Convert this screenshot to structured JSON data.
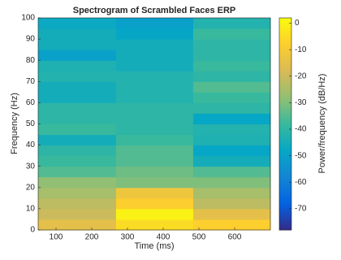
{
  "chart_data": {
    "type": "heatmap",
    "title": "Spectrogram of Scrambled Faces ERP",
    "x_label": "Time (ms)",
    "y_label": "Frequency (Hz)",
    "colorbar_label": "Power/frequency (dB/Hz)",
    "x_bins": [
      50,
      268,
      484,
      700
    ],
    "y_bins": [
      0,
      5,
      10,
      15,
      20,
      25,
      30,
      35,
      40,
      45,
      50,
      55,
      60,
      65,
      70,
      75,
      80,
      85,
      90,
      95,
      100
    ],
    "values": [
      [
        -15,
        -5,
        -8
      ],
      [
        -20,
        0,
        -15
      ],
      [
        -22,
        -8,
        -22
      ],
      [
        -25,
        -12,
        -25
      ],
      [
        -28,
        -30,
        -30
      ],
      [
        -35,
        -32,
        -35
      ],
      [
        -38,
        -35,
        -45
      ],
      [
        -40,
        -35,
        -48
      ],
      [
        -45,
        -38,
        -43
      ],
      [
        -38,
        -40,
        -42
      ],
      [
        -40,
        -40,
        -48
      ],
      [
        -40,
        -40,
        -40
      ],
      [
        -45,
        -42,
        -38
      ],
      [
        -45,
        -42,
        -35
      ],
      [
        -42,
        -42,
        -40
      ],
      [
        -43,
        -45,
        -38
      ],
      [
        -50,
        -45,
        -40
      ],
      [
        -45,
        -45,
        -40
      ],
      [
        -45,
        -48,
        -38
      ],
      [
        -47,
        -50,
        -42
      ]
    ],
    "xlim": [
      50,
      700
    ],
    "xticks": [
      100,
      200,
      300,
      400,
      500,
      600
    ],
    "ylim": [
      0,
      100
    ],
    "yticks": [
      0,
      10,
      20,
      30,
      40,
      50,
      60,
      70,
      80,
      90,
      100
    ],
    "clim": [
      -78,
      2
    ],
    "cticks": [
      0,
      -10,
      -20,
      -30,
      -40,
      -50,
      -60,
      -70
    ],
    "colormap": [
      "#352a87",
      "#0363e1",
      "#1485d4",
      "#06a7c6",
      "#38b99e",
      "#92bf73",
      "#d9ba56",
      "#fcce2e",
      "#f9fb0e"
    ]
  }
}
